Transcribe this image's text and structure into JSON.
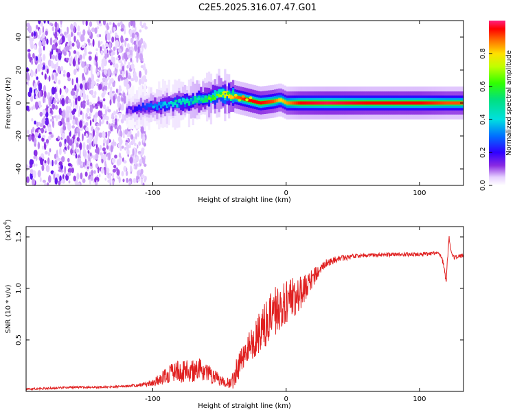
{
  "figure": {
    "title": "C2E5.2025.316.07.47.G01"
  },
  "chart_data": [
    {
      "type": "heatmap",
      "title": "C2E5.2025.316.07.47.G01",
      "xlabel": "Height of straight line (km)",
      "ylabel": "Frequency (Hz)",
      "xlim": [
        -195,
        133
      ],
      "ylim": [
        -50,
        50
      ],
      "xticks": [
        -100,
        0,
        100
      ],
      "xtick_labels": [
        "-100",
        "0",
        "100"
      ],
      "yticks": [
        -40,
        -20,
        0,
        20,
        40
      ],
      "ytick_labels": [
        "-40",
        "-20",
        "0",
        "20",
        "40"
      ],
      "colorbar": {
        "label": "Normalized spectral amplitude",
        "range": [
          0.0,
          1.0
        ],
        "ticks": [
          0.0,
          0.2,
          0.4,
          0.6,
          0.8
        ],
        "tick_labels": [
          "0.0",
          "0.2",
          "0.4",
          "0.6",
          "0.8"
        ]
      },
      "ridge": {
        "x": [
          -120,
          -100,
          -80,
          -60,
          -50,
          -40,
          -30,
          -20,
          -10,
          -5,
          0,
          10,
          30,
          60,
          100,
          120,
          133
        ],
        "y": [
          -4,
          -2,
          0,
          3,
          5,
          4,
          2,
          0,
          1,
          2,
          0,
          0,
          0,
          0,
          0,
          0,
          0
        ],
        "amplitude": [
          0.15,
          0.3,
          0.45,
          0.55,
          0.7,
          0.85,
          0.95,
          0.95,
          0.9,
          0.8,
          0.85,
          0.95,
          0.98,
          0.95,
          0.95,
          0.9,
          0.9
        ]
      },
      "noise_region_x": [
        -195,
        -105
      ]
    },
    {
      "type": "line",
      "xlabel": "Height of straight line (km)",
      "ylabel": "SNR (10 * v/v)",
      "y_multiplier_label": "(x10",
      "y_multiplier_exp": "4",
      "y_multiplier_close": ")",
      "xlim": [
        -195,
        133
      ],
      "ylim": [
        0.0,
        1.6
      ],
      "xticks": [
        -100,
        0,
        100
      ],
      "xtick_labels": [
        "-100",
        "0",
        "100"
      ],
      "yticks": [
        0.5,
        1.0,
        1.5
      ],
      "ytick_labels": [
        "0.5",
        "1.0",
        "1.5"
      ],
      "series": [
        {
          "name": "SNR",
          "color": "#e02020",
          "x": [
            -195,
            -180,
            -160,
            -140,
            -120,
            -105,
            -95,
            -85,
            -75,
            -65,
            -55,
            -45,
            -40,
            -35,
            -30,
            -25,
            -20,
            -15,
            -10,
            -5,
            0,
            5,
            10,
            15,
            20,
            25,
            30,
            40,
            50,
            60,
            80,
            100,
            115,
            118,
            120,
            122,
            124,
            126,
            133
          ],
          "y": [
            0.02,
            0.03,
            0.04,
            0.04,
            0.05,
            0.07,
            0.11,
            0.18,
            0.2,
            0.21,
            0.15,
            0.08,
            0.1,
            0.28,
            0.4,
            0.47,
            0.58,
            0.65,
            0.74,
            0.82,
            0.85,
            0.9,
            0.95,
            1.02,
            1.1,
            1.18,
            1.25,
            1.29,
            1.31,
            1.32,
            1.33,
            1.33,
            1.34,
            1.25,
            1.05,
            1.5,
            1.35,
            1.3,
            1.32
          ],
          "noise_amplitude": [
            0.01,
            0.01,
            0.01,
            0.01,
            0.01,
            0.02,
            0.06,
            0.1,
            0.12,
            0.11,
            0.08,
            0.04,
            0.08,
            0.15,
            0.16,
            0.17,
            0.2,
            0.22,
            0.25,
            0.25,
            0.23,
            0.2,
            0.18,
            0.12,
            0.09,
            0.06,
            0.04,
            0.03,
            0.025,
            0.02,
            0.02,
            0.02,
            0.02,
            0.03,
            0.03,
            0.05,
            0.03,
            0.02,
            0.02
          ]
        }
      ]
    }
  ]
}
